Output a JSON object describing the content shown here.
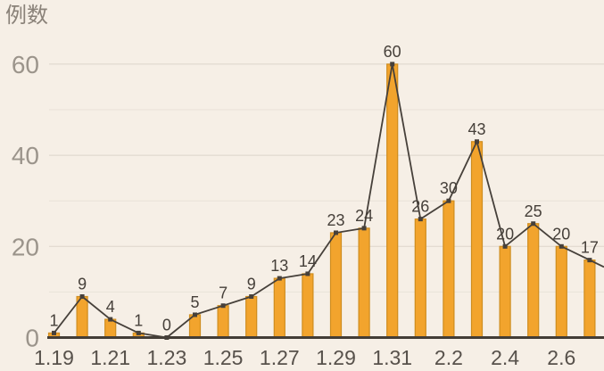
{
  "chart_data": {
    "type": "bar",
    "overlay": "line",
    "title": "例数",
    "categories": [
      "1.19",
      "1.20",
      "1.21",
      "1.22",
      "1.23",
      "1.24",
      "1.25",
      "1.26",
      "1.27",
      "1.28",
      "1.29",
      "1.30",
      "1.31",
      "2.1",
      "2.2",
      "2.3",
      "2.4",
      "2.5",
      "2.6",
      "2.7"
    ],
    "values": [
      1,
      9,
      4,
      1,
      0,
      5,
      7,
      9,
      13,
      14,
      23,
      24,
      60,
      26,
      30,
      43,
      20,
      25,
      20,
      17
    ],
    "data_labels_shown": true,
    "x_tick_labels": [
      "1.19",
      "1.21",
      "1.23",
      "1.25",
      "1.27",
      "1.29",
      "1.31",
      "2.2",
      "2.4",
      "2.6"
    ],
    "x_tick_every": 2,
    "y_ticks": [
      0,
      20,
      40,
      60
    ],
    "ylim": [
      0,
      60
    ],
    "grid": {
      "horizontal_step": 10,
      "labeled_step": 20,
      "visible": true
    },
    "legend": "none",
    "line_extends_past_right_edge": true,
    "colors": {
      "background": "#f6efe6",
      "bar_fill": "#f2a42d",
      "bar_stroke": "#cf8d1f",
      "line": "#46403a",
      "marker": "#46403a",
      "value_label": "#46403a",
      "y_tick_label": "#9b948b",
      "x_tick_label": "#57514b",
      "grid_major": "#ddd5ca",
      "grid_minor": "#e9e2d8",
      "axis": "#433d36",
      "title": "#8a8279"
    }
  }
}
